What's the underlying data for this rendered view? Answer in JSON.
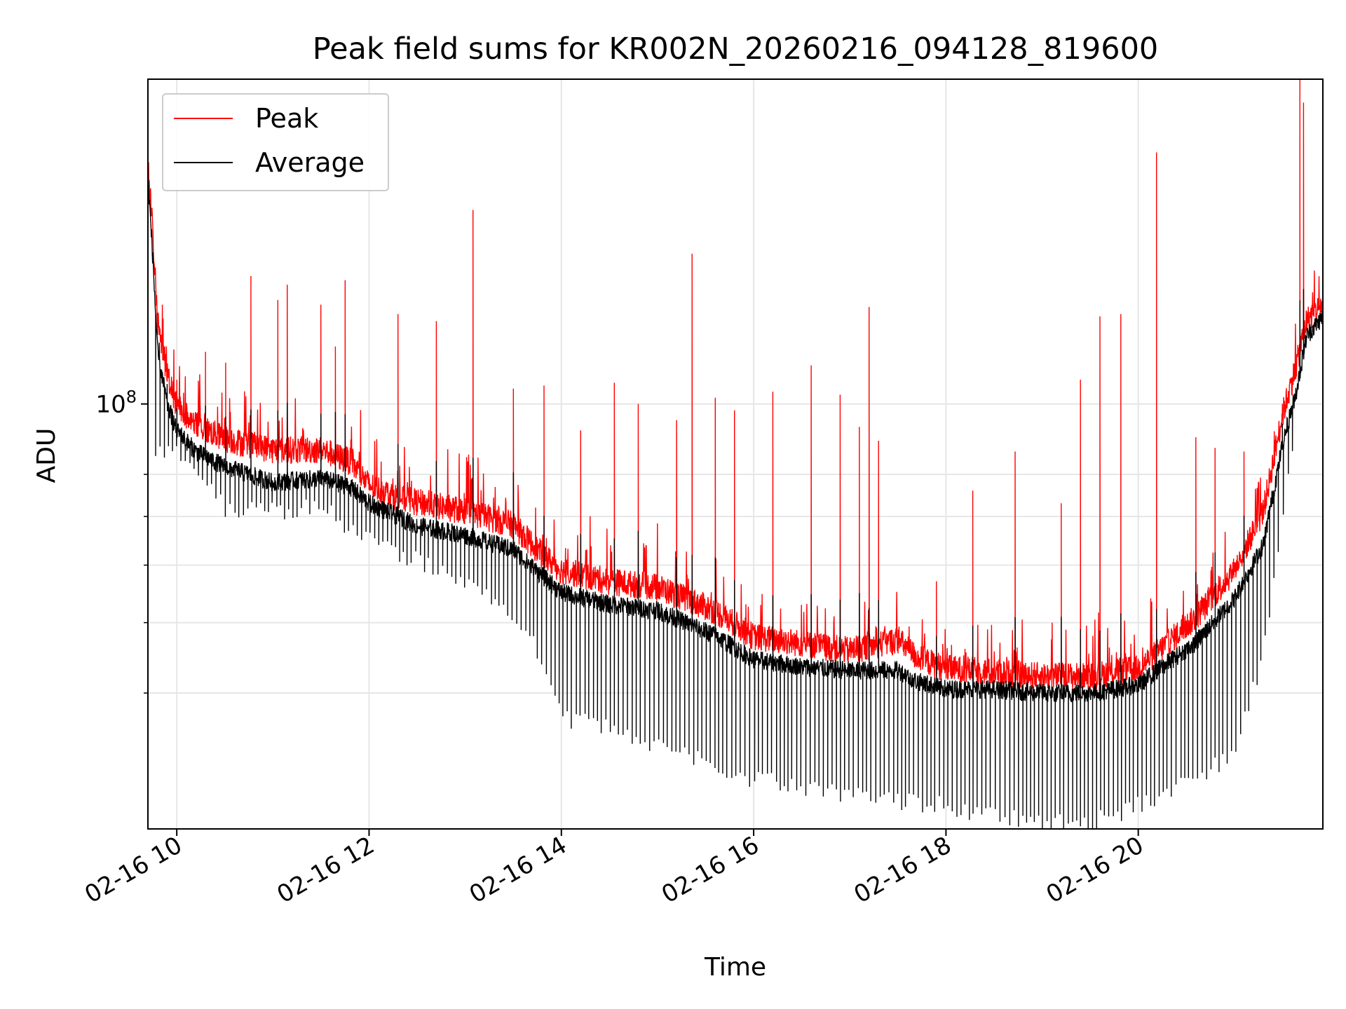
{
  "chart_data": {
    "type": "line",
    "title": "Peak field sums for KR002N_20260216_094128_819600",
    "xlabel": "Time",
    "ylabel": "ADU",
    "y_scale": "log",
    "xlim_hours": [
      9.7,
      21.92
    ],
    "ylim": [
      26000000,
      280000000
    ],
    "x_ticks": [
      {
        "value": 10,
        "label": "02-16 10"
      },
      {
        "value": 12,
        "label": "02-16 12"
      },
      {
        "value": 14,
        "label": "02-16 14"
      },
      {
        "value": 16,
        "label": "02-16 16"
      },
      {
        "value": 18,
        "label": "02-16 18"
      },
      {
        "value": 20,
        "label": "02-16 20"
      }
    ],
    "y_major_ticks": [
      {
        "value": 100000000,
        "base": "10",
        "exponent": "8"
      }
    ],
    "y_minor_ticks": [
      40000000,
      50000000,
      60000000,
      70000000,
      80000000
    ],
    "grid": true,
    "legend_position": "upper-left",
    "series": [
      {
        "name": "Peak",
        "color": "#ff0000",
        "baseline_points": [
          [
            9.7,
            210000000
          ],
          [
            9.75,
            170000000
          ],
          [
            9.8,
            128000000
          ],
          [
            9.9,
            108000000
          ],
          [
            10.0,
            98000000
          ],
          [
            10.2,
            92000000
          ],
          [
            10.5,
            88000000
          ],
          [
            11.0,
            85000000
          ],
          [
            11.5,
            85000000
          ],
          [
            11.8,
            82000000
          ],
          [
            12.0,
            76000000
          ],
          [
            12.3,
            73000000
          ],
          [
            12.5,
            72000000
          ],
          [
            13.0,
            70000000
          ],
          [
            13.5,
            67000000
          ],
          [
            13.8,
            61000000
          ],
          [
            14.0,
            58000000
          ],
          [
            14.5,
            56000000
          ],
          [
            15.0,
            55000000
          ],
          [
            15.3,
            53000000
          ],
          [
            15.6,
            51000000
          ],
          [
            16.0,
            47000000
          ],
          [
            16.5,
            46000000
          ],
          [
            17.0,
            45000000
          ],
          [
            17.5,
            46500000
          ],
          [
            17.7,
            44000000
          ],
          [
            18.0,
            42500000
          ],
          [
            18.5,
            42000000
          ],
          [
            19.0,
            41500000
          ],
          [
            19.5,
            41500000
          ],
          [
            20.0,
            42500000
          ],
          [
            20.3,
            46000000
          ],
          [
            20.6,
            50000000
          ],
          [
            21.0,
            58000000
          ],
          [
            21.3,
            70000000
          ],
          [
            21.5,
            95000000
          ],
          [
            21.65,
            112000000
          ],
          [
            21.75,
            128000000
          ],
          [
            21.92,
            135000000
          ]
        ],
        "spikes": [
          [
            9.82,
            128000000
          ],
          [
            9.9,
            113000000
          ],
          [
            10.0,
            108000000
          ],
          [
            10.3,
            118000000
          ],
          [
            10.51,
            114000000
          ],
          [
            10.77,
            150000000
          ],
          [
            11.05,
            139000000
          ],
          [
            11.15,
            146000000
          ],
          [
            11.5,
            137000000
          ],
          [
            11.65,
            120000000
          ],
          [
            11.75,
            148000000
          ],
          [
            12.3,
            133000000
          ],
          [
            12.7,
            130000000
          ],
          [
            13.08,
            185000000
          ],
          [
            13.5,
            105000000
          ],
          [
            13.82,
            106000000
          ],
          [
            14.2,
            92000000
          ],
          [
            14.55,
            107000000
          ],
          [
            14.8,
            100000000
          ],
          [
            15.2,
            95000000
          ],
          [
            15.36,
            161000000
          ],
          [
            15.6,
            102000000
          ],
          [
            15.8,
            98000000
          ],
          [
            16.2,
            104000000
          ],
          [
            16.6,
            113000000
          ],
          [
            16.9,
            103000000
          ],
          [
            17.1,
            93000000
          ],
          [
            17.2,
            136000000
          ],
          [
            17.3,
            89000000
          ],
          [
            17.9,
            57000000
          ],
          [
            18.28,
            76000000
          ],
          [
            18.72,
            86000000
          ],
          [
            19.2,
            73000000
          ],
          [
            19.4,
            108000000
          ],
          [
            19.6,
            132000000
          ],
          [
            19.82,
            133000000
          ],
          [
            20.19,
            222000000
          ],
          [
            20.6,
            90000000
          ],
          [
            20.8,
            87000000
          ],
          [
            21.1,
            86000000
          ],
          [
            21.5,
            100000000
          ],
          [
            21.68,
            280000000
          ],
          [
            21.72,
            260000000
          ]
        ]
      },
      {
        "name": "Average",
        "color": "#000000",
        "baseline_points": [
          [
            9.7,
            205000000
          ],
          [
            9.75,
            160000000
          ],
          [
            9.8,
            118000000
          ],
          [
            9.9,
            100000000
          ],
          [
            10.0,
            92000000
          ],
          [
            10.2,
            86000000
          ],
          [
            10.5,
            82000000
          ],
          [
            11.0,
            78000000
          ],
          [
            11.5,
            79000000
          ],
          [
            11.8,
            77000000
          ],
          [
            12.0,
            73000000
          ],
          [
            12.3,
            70000000
          ],
          [
            12.5,
            68000000
          ],
          [
            13.0,
            66000000
          ],
          [
            13.5,
            63000000
          ],
          [
            13.8,
            58000000
          ],
          [
            14.0,
            55000000
          ],
          [
            14.5,
            53000000
          ],
          [
            15.0,
            52000000
          ],
          [
            15.3,
            50000000
          ],
          [
            15.6,
            48000000
          ],
          [
            16.0,
            44500000
          ],
          [
            16.5,
            43500000
          ],
          [
            17.0,
            43000000
          ],
          [
            17.5,
            43000000
          ],
          [
            17.7,
            41500000
          ],
          [
            18.0,
            40500000
          ],
          [
            18.5,
            40500000
          ],
          [
            19.0,
            40000000
          ],
          [
            19.5,
            40000000
          ],
          [
            20.0,
            41000000
          ],
          [
            20.3,
            44000000
          ],
          [
            20.6,
            47000000
          ],
          [
            21.0,
            54000000
          ],
          [
            21.3,
            64000000
          ],
          [
            21.5,
            88000000
          ],
          [
            21.65,
            105000000
          ],
          [
            21.75,
            124000000
          ],
          [
            21.92,
            132000000
          ]
        ],
        "dips": [
          [
            10.0,
            85000000
          ],
          [
            10.5,
            72000000
          ],
          [
            11.0,
            71000000
          ],
          [
            11.5,
            72000000
          ],
          [
            12.0,
            65000000
          ],
          [
            12.5,
            61000000
          ],
          [
            13.0,
            57000000
          ],
          [
            13.5,
            51000000
          ],
          [
            13.8,
            45000000
          ],
          [
            14.0,
            37000000
          ],
          [
            14.5,
            36000000
          ],
          [
            15.0,
            34000000
          ],
          [
            15.5,
            32000000
          ],
          [
            16.0,
            30500000
          ],
          [
            16.5,
            29500000
          ],
          [
            17.0,
            29000000
          ],
          [
            17.5,
            28500000
          ],
          [
            18.0,
            28000000
          ],
          [
            18.5,
            27000000
          ],
          [
            19.0,
            26500000
          ],
          [
            19.5,
            26500000
          ],
          [
            20.0,
            28000000
          ],
          [
            20.5,
            30000000
          ],
          [
            21.0,
            33000000
          ],
          [
            21.3,
            45000000
          ],
          [
            21.5,
            70000000
          ],
          [
            21.6,
            85000000
          ]
        ],
        "dip_spacing_hours": 0.045,
        "dip_start_hours": 9.78,
        "dip_end_hours": 21.62
      }
    ]
  }
}
